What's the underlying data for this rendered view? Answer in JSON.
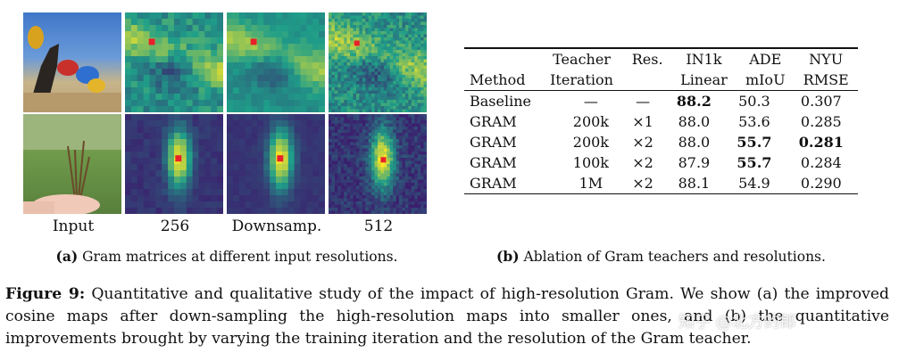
{
  "panel_a": {
    "captions": [
      "Input",
      "256",
      "Downsamp.",
      "512"
    ],
    "subcaption_label": "(a)",
    "subcaption_text": "Gram matrices at different input resolutions."
  },
  "panel_b": {
    "subcaption_label": "(b)",
    "subcaption_text": "Ablation of Gram teachers and resolutions.",
    "header_top": [
      "",
      "Teacher",
      "Res.",
      "IN1k",
      "ADE",
      "NYU"
    ],
    "header_bottom": [
      "Method",
      "Iteration",
      "",
      "Linear",
      "mIoU",
      "RMSE"
    ],
    "rows": [
      {
        "method": "Baseline",
        "iteration": "—",
        "res": "—",
        "in1k": "88.2",
        "ade": "50.3",
        "nyu": "0.307"
      },
      {
        "method": "GRAM",
        "iteration": "200k",
        "res": "×1",
        "in1k": "88.0",
        "ade": "53.6",
        "nyu": "0.285"
      },
      {
        "method": "GRAM",
        "iteration": "200k",
        "res": "×2",
        "in1k": "88.0",
        "ade": "55.7",
        "nyu": "0.281"
      },
      {
        "method": "GRAM",
        "iteration": "100k",
        "res": "×2",
        "in1k": "87.9",
        "ade": "55.7",
        "nyu": "0.284"
      },
      {
        "method": "GRAM",
        "iteration": "1M",
        "res": "×2",
        "in1k": "88.1",
        "ade": "54.9",
        "nyu": "0.290"
      }
    ]
  },
  "caption": {
    "label": "Figure 9:",
    "text": "Quantitative and qualitative study of the impact of high-resolution Gram. We show (a) the improved cosine maps after down-sampling the high-resolution maps into smaller ones, and (b) the quantitative improvements brought by varying the training iteration and the resolution of the Gram teacher."
  },
  "watermark": "知乎 @北方的郎",
  "colors": {
    "map_low": "#3b1f6e",
    "map_mid": "#1f9e89",
    "map_high": "#fde725",
    "marker": "#e8202a"
  }
}
